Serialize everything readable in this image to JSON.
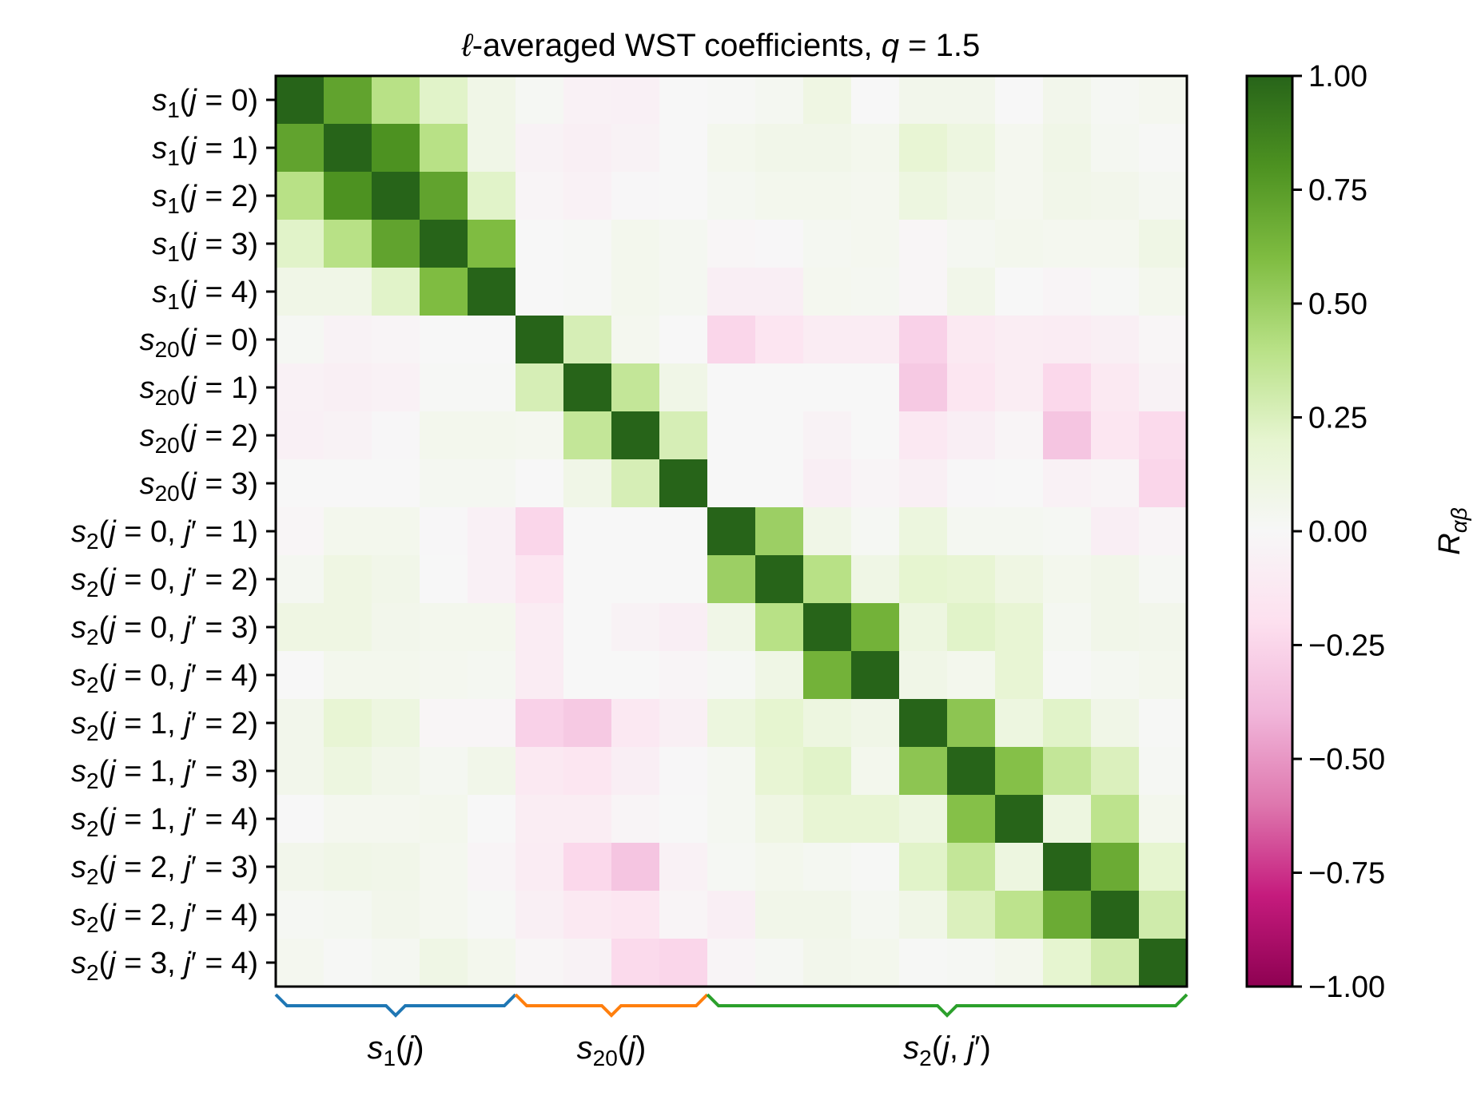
{
  "chart_data": {
    "type": "heatmap",
    "title": "ℓ-averaged WST coefficients, q = 1.5",
    "row_labels": [
      "s1(j = 0)",
      "s1(j = 1)",
      "s1(j = 2)",
      "s1(j = 3)",
      "s1(j = 4)",
      "s20(j = 0)",
      "s20(j = 1)",
      "s20(j = 2)",
      "s20(j = 3)",
      "s2(j = 0, j′ = 1)",
      "s2(j = 0, j′ = 2)",
      "s2(j = 0, j′ = 3)",
      "s2(j = 0, j′ = 4)",
      "s2(j = 1, j′ = 2)",
      "s2(j = 1, j′ = 3)",
      "s2(j = 1, j′ = 4)",
      "s2(j = 2, j′ = 3)",
      "s2(j = 2, j′ = 4)",
      "s2(j = 3, j′ = 4)"
    ],
    "groups": [
      {
        "label": "s1(j)",
        "start": 0,
        "end": 4,
        "color": "#1f77b4"
      },
      {
        "label": "s20(j)",
        "start": 5,
        "end": 8,
        "color": "#ff7f0e"
      },
      {
        "label": "s2(j, j′)",
        "start": 9,
        "end": 18,
        "color": "#2ca02c"
      }
    ],
    "values": [
      [
        1.0,
        0.72,
        0.4,
        0.22,
        0.08,
        0.02,
        -0.05,
        -0.06,
        0.0,
        0.01,
        0.03,
        0.1,
        0.0,
        0.06,
        0.06,
        0.0,
        0.06,
        0.02,
        0.04
      ],
      [
        0.72,
        1.0,
        0.8,
        0.4,
        0.08,
        -0.04,
        -0.07,
        -0.04,
        0.0,
        0.05,
        0.07,
        0.07,
        0.05,
        0.18,
        0.12,
        0.04,
        0.08,
        0.03,
        0.01
      ],
      [
        0.4,
        0.8,
        1.0,
        0.72,
        0.22,
        -0.03,
        -0.05,
        -0.01,
        0.0,
        0.03,
        0.05,
        0.05,
        0.04,
        0.12,
        0.07,
        0.04,
        0.07,
        0.06,
        0.03
      ],
      [
        0.22,
        0.4,
        0.72,
        1.0,
        0.6,
        0.0,
        0.01,
        0.05,
        0.03,
        -0.02,
        -0.01,
        0.03,
        0.04,
        -0.02,
        0.03,
        0.05,
        0.04,
        0.04,
        0.09
      ],
      [
        0.08,
        0.08,
        0.22,
        0.6,
        1.0,
        0.0,
        0.01,
        0.05,
        0.03,
        -0.08,
        -0.08,
        0.04,
        0.03,
        -0.02,
        0.07,
        0.0,
        -0.03,
        0.01,
        0.05
      ],
      [
        0.02,
        -0.04,
        -0.03,
        0.0,
        0.0,
        1.0,
        0.27,
        0.04,
        0.0,
        -0.25,
        -0.16,
        -0.1,
        -0.1,
        -0.27,
        -0.12,
        -0.09,
        -0.1,
        -0.07,
        -0.02
      ],
      [
        -0.05,
        -0.07,
        -0.05,
        0.01,
        0.01,
        0.27,
        1.0,
        0.35,
        0.08,
        0.0,
        0.0,
        0.0,
        0.0,
        -0.31,
        -0.15,
        -0.09,
        -0.24,
        -0.12,
        -0.04
      ],
      [
        -0.06,
        -0.04,
        -0.01,
        0.05,
        0.05,
        0.04,
        0.35,
        1.0,
        0.27,
        0.0,
        0.0,
        -0.04,
        0.0,
        -0.13,
        -0.08,
        -0.03,
        -0.33,
        -0.15,
        -0.23
      ],
      [
        0.0,
        0.0,
        0.0,
        0.03,
        0.03,
        0.0,
        0.08,
        0.27,
        1.0,
        0.0,
        0.0,
        -0.08,
        -0.03,
        -0.07,
        -0.01,
        0.0,
        -0.05,
        -0.03,
        -0.25
      ],
      [
        -0.02,
        0.05,
        0.05,
        -0.01,
        -0.06,
        -0.25,
        0.0,
        0.0,
        0.0,
        1.0,
        0.5,
        0.08,
        0.02,
        0.13,
        0.03,
        0.03,
        0.02,
        -0.08,
        -0.03
      ],
      [
        0.03,
        0.1,
        0.07,
        0.0,
        -0.06,
        -0.16,
        0.0,
        0.0,
        0.0,
        0.5,
        1.0,
        0.4,
        0.09,
        0.2,
        0.18,
        0.1,
        0.05,
        0.07,
        0.02
      ],
      [
        0.1,
        0.1,
        0.06,
        0.05,
        0.05,
        -0.1,
        0.0,
        -0.04,
        -0.08,
        0.08,
        0.4,
        1.0,
        0.65,
        0.12,
        0.22,
        0.18,
        0.03,
        0.07,
        0.06
      ],
      [
        0.0,
        0.05,
        0.05,
        0.04,
        0.03,
        -0.1,
        0.0,
        0.0,
        -0.03,
        0.02,
        0.09,
        0.65,
        1.0,
        0.08,
        0.05,
        0.18,
        0.01,
        0.03,
        0.05
      ],
      [
        0.06,
        0.18,
        0.12,
        -0.02,
        -0.02,
        -0.27,
        -0.31,
        -0.13,
        -0.07,
        0.13,
        0.2,
        0.12,
        0.08,
        1.0,
        0.55,
        0.12,
        0.22,
        0.08,
        0.01
      ],
      [
        0.06,
        0.12,
        0.07,
        0.03,
        0.07,
        -0.12,
        -0.15,
        -0.08,
        -0.01,
        0.03,
        0.18,
        0.22,
        0.05,
        0.55,
        1.0,
        0.58,
        0.35,
        0.25,
        0.02
      ],
      [
        0.0,
        0.04,
        0.04,
        0.05,
        0.0,
        -0.09,
        -0.09,
        -0.03,
        0.0,
        0.03,
        0.1,
        0.18,
        0.18,
        0.12,
        0.58,
        1.0,
        0.12,
        0.38,
        0.05
      ],
      [
        0.06,
        0.08,
        0.07,
        0.04,
        -0.03,
        -0.1,
        -0.24,
        -0.33,
        -0.05,
        0.02,
        0.05,
        0.03,
        0.01,
        0.22,
        0.35,
        0.12,
        1.0,
        0.68,
        0.2
      ],
      [
        0.02,
        0.03,
        0.06,
        0.04,
        0.01,
        -0.07,
        -0.12,
        -0.15,
        -0.03,
        -0.08,
        0.07,
        0.07,
        0.03,
        0.08,
        0.25,
        0.38,
        0.68,
        1.0,
        0.3
      ],
      [
        0.04,
        0.01,
        0.03,
        0.09,
        0.05,
        -0.02,
        -0.04,
        -0.23,
        -0.25,
        -0.03,
        0.02,
        0.06,
        0.05,
        0.01,
        0.02,
        0.05,
        0.2,
        0.3,
        1.0
      ]
    ],
    "colorbar": {
      "label": "Rαβ",
      "vmin": -1.0,
      "vmax": 1.0,
      "tick_values": [
        1.0,
        0.75,
        0.5,
        0.25,
        0.0,
        -0.25,
        -0.5,
        -0.75,
        -1.0
      ],
      "tick_labels": [
        "1.00",
        "0.75",
        "0.50",
        "0.25",
        "0.00",
        "−0.25",
        "−0.50",
        "−0.75",
        "−1.00"
      ],
      "colormap": "PiYG"
    }
  }
}
